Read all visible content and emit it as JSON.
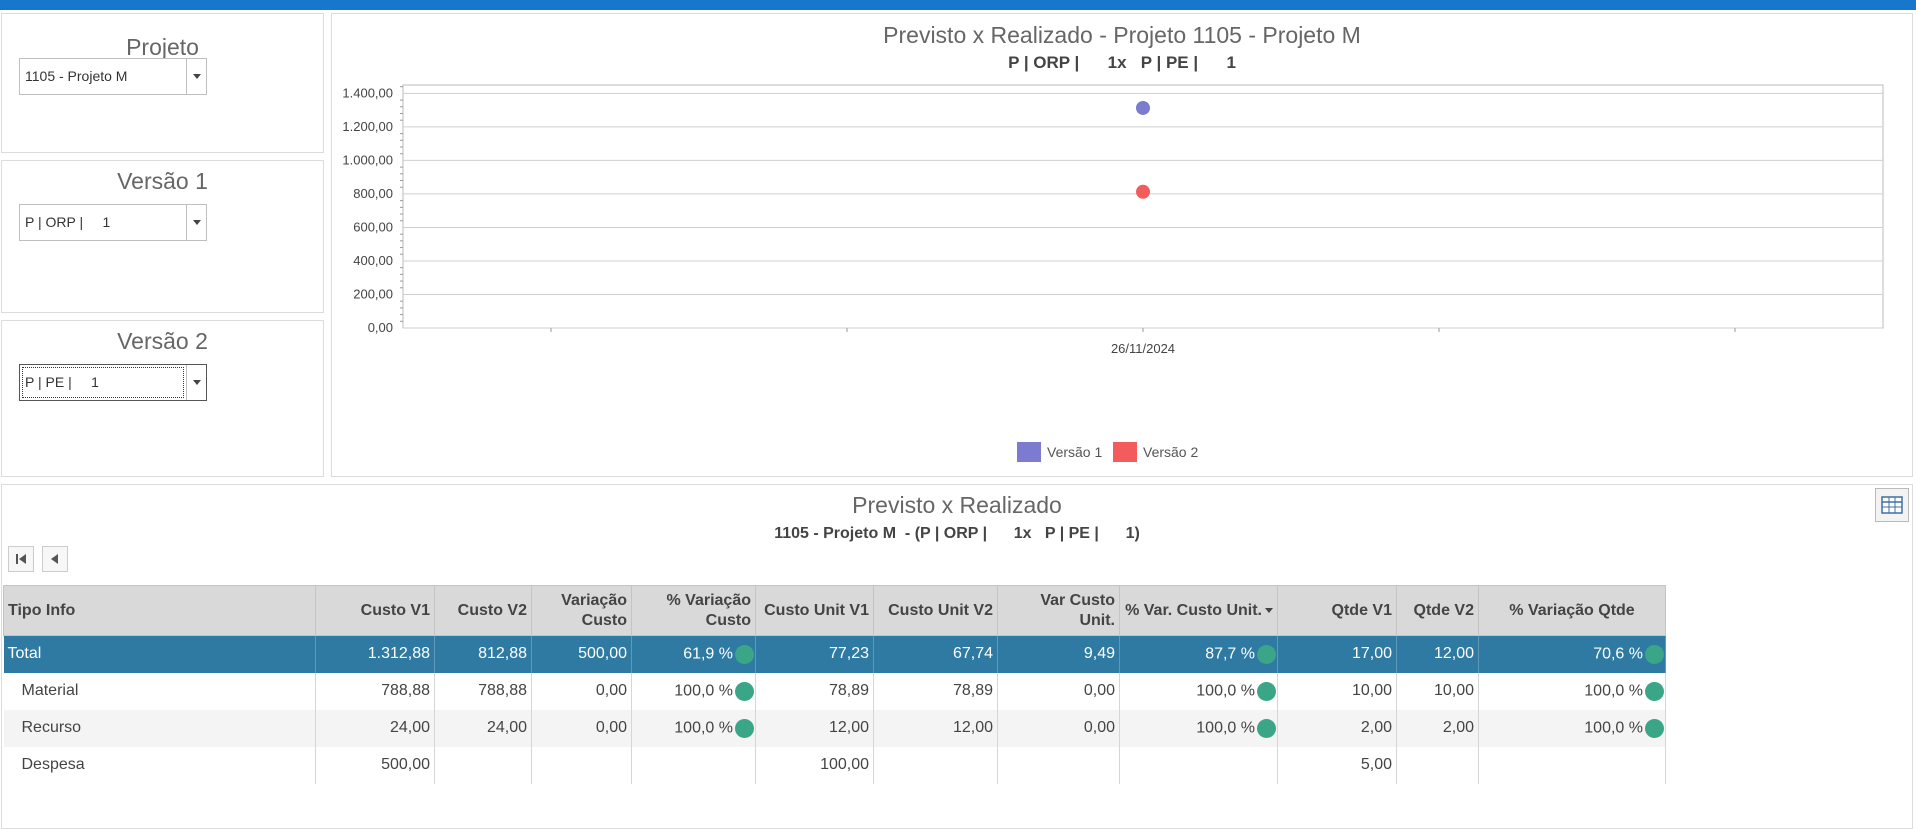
{
  "filters": [
    {
      "title": "Projeto",
      "value": "1105 - Projeto M"
    },
    {
      "title": "Versão 1",
      "value": "P | ORP |     1"
    },
    {
      "title": "Versão 2",
      "value": "P | PE |     1"
    }
  ],
  "chart": {
    "title": "Previsto x Realizado - Projeto 1105 - Projeto M",
    "subtitle": "P | ORP |      1x   P | PE |      1"
  },
  "chart_data": {
    "type": "scatter",
    "title": "Previsto x Realizado - Projeto 1105 - Projeto M",
    "subtitle": "P | ORP |      1x   P | PE |      1",
    "x": [
      "26/11/2024"
    ],
    "series": [
      {
        "name": "Versão 1",
        "color": "#7b7bcf",
        "values": [
          1312.88
        ]
      },
      {
        "name": "Versão 2",
        "color": "#f25c5c",
        "values": [
          812.88
        ]
      }
    ],
    "yticks": [
      "0,00",
      "200,00",
      "400,00",
      "600,00",
      "800,00",
      "1.000,00",
      "1.200,00",
      "1.400,00"
    ],
    "ylim": [
      0,
      1450
    ],
    "grid": true,
    "legend": "bottom-center"
  },
  "grid": {
    "title": "Previsto x Realizado",
    "subtitle": "1105 - Projeto M  - (P | ORP |      1x   P | PE |      1)",
    "columns": [
      "Tipo Info",
      "Custo V1",
      "Custo V2",
      "Variação Custo",
      "% Variação Custo",
      "Custo Unit V1",
      "Custo Unit V2",
      "Var Custo Unit.",
      "% Var. Custo Unit.",
      "Qtde V1",
      "Qtde V2",
      "% Variação Qtde"
    ],
    "rows": [
      [
        "Total",
        "1.312,88",
        "812,88",
        "500,00",
        "61,9 %",
        "77,23",
        "67,74",
        "9,49",
        "87,7 %",
        "17,00",
        "12,00",
        "70,6 %"
      ],
      [
        "Material",
        "788,88",
        "788,88",
        "0,00",
        "100,0 %",
        "78,89",
        "78,89",
        "0,00",
        "100,0 %",
        "10,00",
        "10,00",
        "100,0 %"
      ],
      [
        "Recurso",
        "24,00",
        "24,00",
        "0,00",
        "100,0 %",
        "12,00",
        "12,00",
        "0,00",
        "100,0 %",
        "2,00",
        "2,00",
        "100,0 %"
      ],
      [
        "Despesa",
        "500,00",
        "",
        "",
        "",
        "100,00",
        "",
        "",
        "",
        "5,00",
        "",
        ""
      ]
    ]
  },
  "colors": {
    "accent": "#1777cc",
    "total_row": "#2e7aa2",
    "indicator": "#3aa687"
  },
  "icons": {
    "first": "first-page-icon",
    "prev": "prev-page-icon",
    "table": "table-icon"
  }
}
